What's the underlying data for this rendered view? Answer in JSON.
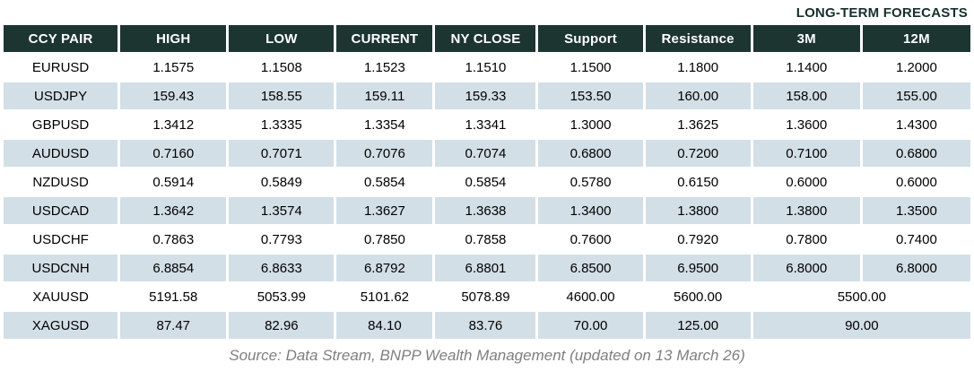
{
  "header": {
    "long_term_label": "LONG-TERM FORECASTS"
  },
  "colors": {
    "header_bg": "#1c3530",
    "row_alt_bg": "#d3dfe6",
    "header_text": "#ffffff",
    "forecast_label_text": "#17302b",
    "source_text": "#7f7f7f"
  },
  "chart_data": {
    "type": "table",
    "title": "LONG-TERM FORECASTS",
    "columns": [
      "CCY PAIR",
      "HIGH",
      "LOW",
      "CURRENT",
      "NY CLOSE",
      "Support",
      "Resistance",
      "3M",
      "12M"
    ],
    "rows": [
      [
        "EURUSD",
        "1.1575",
        "1.1508",
        "1.1523",
        "1.1510",
        "1.1500",
        "1.1800",
        "1.1400",
        "1.2000"
      ],
      [
        "USDJPY",
        "159.43",
        "158.55",
        "159.11",
        "159.33",
        "153.50",
        "160.00",
        "158.00",
        "155.00"
      ],
      [
        "GBPUSD",
        "1.3412",
        "1.3335",
        "1.3354",
        "1.3341",
        "1.3000",
        "1.3625",
        "1.3600",
        "1.4300"
      ],
      [
        "AUDUSD",
        "0.7160",
        "0.7071",
        "0.7076",
        "0.7074",
        "0.6800",
        "0.7200",
        "0.7100",
        "0.6800"
      ],
      [
        "NZDUSD",
        "0.5914",
        "0.5849",
        "0.5854",
        "0.5854",
        "0.5780",
        "0.6150",
        "0.6000",
        "0.6000"
      ],
      [
        "USDCAD",
        "1.3642",
        "1.3574",
        "1.3627",
        "1.3638",
        "1.3400",
        "1.3800",
        "1.3800",
        "1.3500"
      ],
      [
        "USDCHF",
        "0.7863",
        "0.7793",
        "0.7850",
        "0.7858",
        "0.7600",
        "0.7920",
        "0.7800",
        "0.7400"
      ],
      [
        "USDCNH",
        "6.8854",
        "6.8633",
        "6.8792",
        "6.8801",
        "6.8500",
        "6.9500",
        "6.8000",
        "6.8000"
      ],
      [
        "XAUUSD",
        "5191.58",
        "5053.99",
        "5101.62",
        "5078.89",
        "4600.00",
        "5600.00",
        "5500.00"
      ],
      [
        "XAGUSD",
        "87.47",
        "82.96",
        "84.10",
        "83.76",
        "70.00",
        "125.00",
        "90.00"
      ]
    ],
    "merged_forecast_rows": [
      "XAUUSD",
      "XAGUSD"
    ],
    "source": "Source: Data Stream, BNPP Wealth Management (updated on 13 March 26)"
  }
}
